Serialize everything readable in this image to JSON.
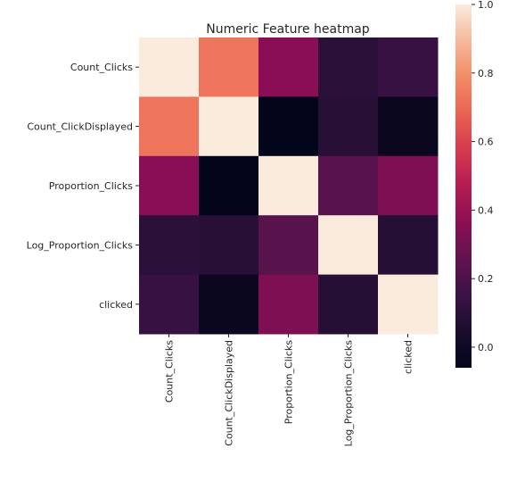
{
  "chart_data": {
    "type": "heatmap",
    "title": "Numeric Feature heatmap",
    "rows": [
      "Count_Clicks",
      "Count_ClickDisplayed",
      "Proportion_Clicks",
      "Log_Proportion_Clicks",
      "clicked"
    ],
    "columns": [
      "Count_Clicks",
      "Count_ClickDisplayed",
      "Proportion_Clicks",
      "Log_Proportion_Clicks",
      "clicked"
    ],
    "values": [
      [
        1.0,
        0.73,
        0.36,
        0.1,
        0.14
      ],
      [
        0.73,
        1.0,
        -0.06,
        0.09,
        -0.03
      ],
      [
        0.36,
        -0.06,
        1.0,
        0.23,
        0.33
      ],
      [
        0.1,
        0.09,
        0.23,
        1.0,
        0.08
      ],
      [
        0.14,
        -0.03,
        0.33,
        0.08,
        1.0
      ]
    ],
    "colorbar": {
      "min": -0.06,
      "max": 1.0,
      "ticks": [
        0.0,
        0.2,
        0.4,
        0.6,
        0.8,
        1.0
      ],
      "tick_labels": [
        "0.0",
        "0.2",
        "0.4",
        "0.6",
        "0.8",
        "1.0"
      ]
    },
    "colormap": {
      "name": "rocket",
      "stops": [
        {
          "t": 0.0,
          "color": "#03051a"
        },
        {
          "t": 0.1,
          "color": "#1a0d2c"
        },
        {
          "t": 0.2,
          "color": "#3b1245"
        },
        {
          "t": 0.3,
          "color": "#62124f"
        },
        {
          "t": 0.4,
          "color": "#8c0e55"
        },
        {
          "t": 0.5,
          "color": "#b41c53"
        },
        {
          "t": 0.6,
          "color": "#d6394f"
        },
        {
          "t": 0.7,
          "color": "#ea6251"
        },
        {
          "t": 0.8,
          "color": "#f28b67"
        },
        {
          "t": 0.9,
          "color": "#f6b89b"
        },
        {
          "t": 1.0,
          "color": "#faebdd"
        }
      ]
    }
  }
}
